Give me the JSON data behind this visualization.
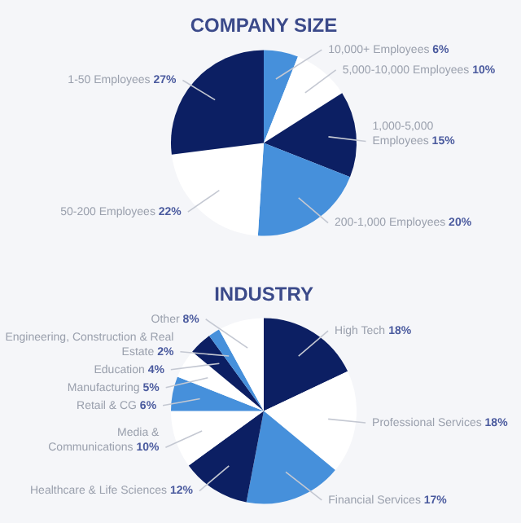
{
  "chart_data": [
    {
      "type": "pie",
      "title": "COMPANY SIZE",
      "legend": false,
      "categories": [
        "10,000+ Employees",
        "5,000-10,000 Employees",
        "1,000-5,000 Employees",
        "200-1,000 Employees",
        "50-200 Employees",
        "1-50 Employees"
      ],
      "values": [
        6,
        10,
        15,
        20,
        22,
        27
      ],
      "value_labels": [
        "6%",
        "10%",
        "15%",
        "20%",
        "22%",
        "27%"
      ],
      "colors": [
        "#4690db",
        "#ffffff",
        "#0c1f63",
        "#4690db",
        "#ffffff",
        "#0c1f63"
      ]
    },
    {
      "type": "pie",
      "title": "INDUSTRY",
      "legend": false,
      "categories": [
        "High Tech",
        "Professional Services",
        "Financial Services",
        "Healthcare & Life Sciences",
        "Media & Communications",
        "Retail & CG",
        "Manufacturing",
        "Education",
        "Engineering, Construction & Real Estate",
        "Other"
      ],
      "values": [
        18,
        18,
        17,
        12,
        10,
        6,
        5,
        4,
        2,
        8
      ],
      "value_labels": [
        "18%",
        "18%",
        "17%",
        "12%",
        "10%",
        "6%",
        "5%",
        "4%",
        "2%",
        "8%"
      ],
      "colors": [
        "#0c1f63",
        "#ffffff",
        "#4690db",
        "#0c1f63",
        "#ffffff",
        "#4690db",
        "#ffffff",
        "#0c1f63",
        "#4690db",
        "#ffffff"
      ]
    }
  ]
}
